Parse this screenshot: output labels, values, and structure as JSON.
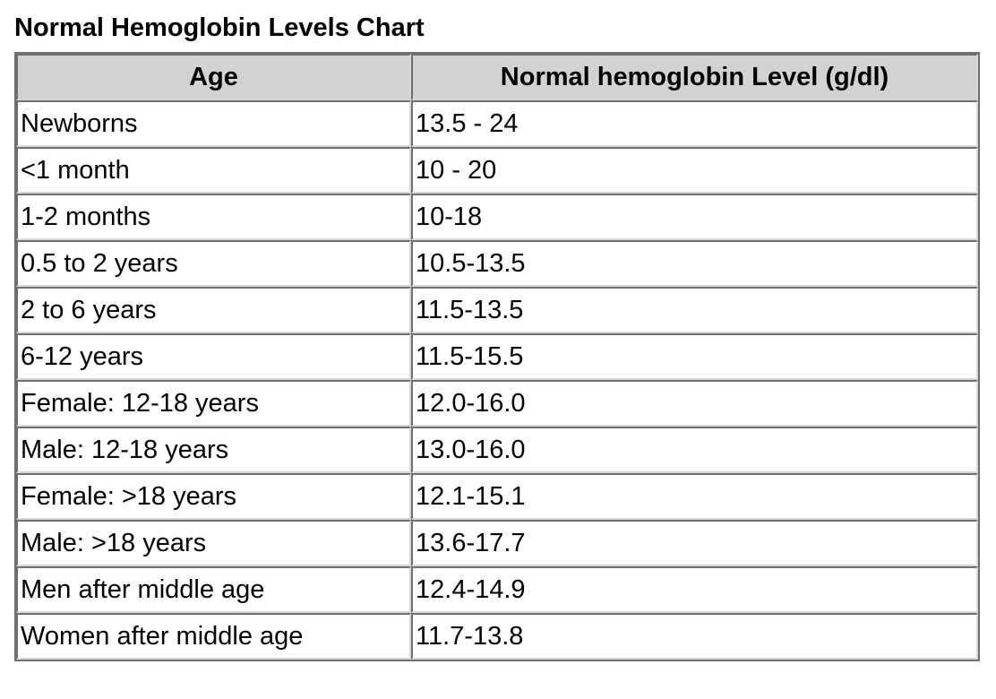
{
  "page": {
    "title": "Normal Hemoglobin Levels Chart"
  },
  "colors": {
    "header_bg": "#d2d2d2",
    "border_dark": "#6f6f6f",
    "border_light": "#d8d8d8",
    "text": "#000000",
    "background": "#ffffff"
  },
  "chart_data": {
    "type": "table",
    "title": "Normal Hemoglobin Levels Chart",
    "columns": [
      "Age",
      "Normal hemoglobin Level (g/dl)"
    ],
    "rows": [
      [
        "Newborns",
        "13.5 - 24"
      ],
      [
        "<1 month",
        "10 - 20"
      ],
      [
        "1-2 months",
        "10-18"
      ],
      [
        "0.5 to 2 years",
        "10.5-13.5"
      ],
      [
        "2 to 6 years",
        "11.5-13.5"
      ],
      [
        "6-12 years",
        "11.5-15.5"
      ],
      [
        "Female: 12-18 years",
        "12.0-16.0"
      ],
      [
        "Male: 12-18 years",
        "13.0-16.0"
      ],
      [
        "Female: >18 years",
        "12.1-15.1"
      ],
      [
        "Male: >18 years",
        "13.6-17.7"
      ],
      [
        "Men after middle age",
        "12.4-14.9"
      ],
      [
        "Women after middle age",
        "11.7-13.8"
      ]
    ]
  }
}
